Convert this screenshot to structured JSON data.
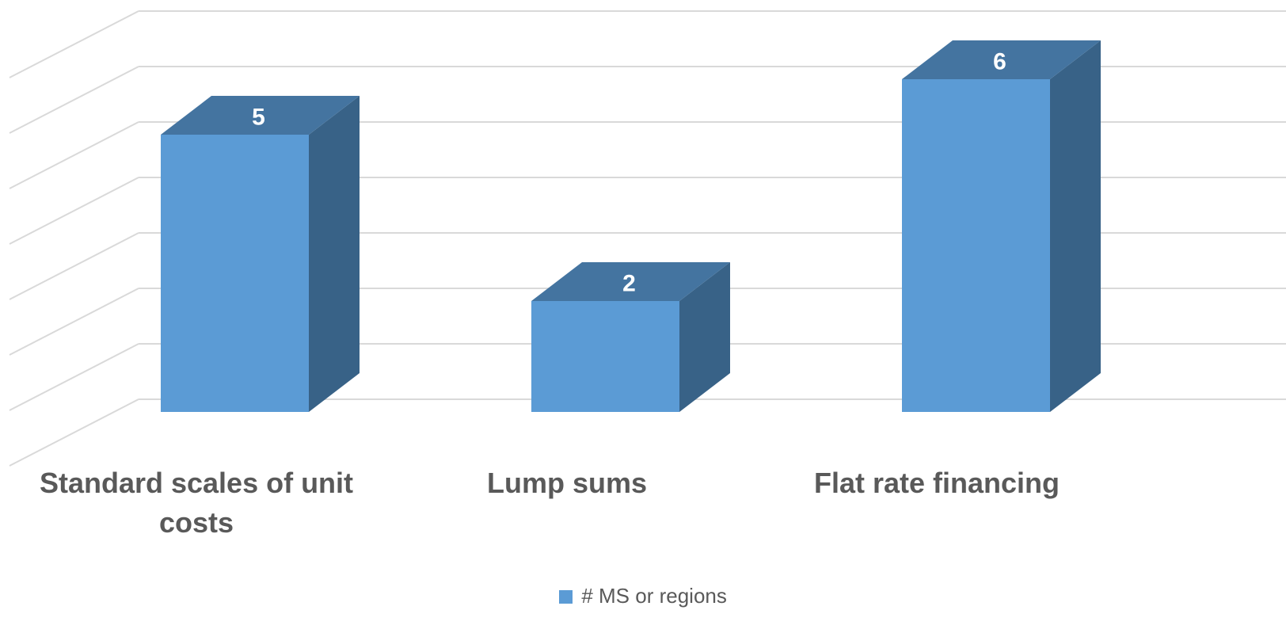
{
  "chart_data": {
    "type": "bar",
    "style": "3d-column",
    "categories": [
      "Standard scales of unit costs",
      "Lump sums",
      "Flat rate financing"
    ],
    "series": [
      {
        "name": "# MS or regions",
        "values": [
          5,
          2,
          6
        ]
      }
    ],
    "ylim": [
      0,
      7
    ],
    "grid": true,
    "data_labels": true,
    "legend": "bottom",
    "colors": {
      "front": "#5b9bd5",
      "top": "#4474a0",
      "side": "#386287",
      "grid": "#d9d9d9",
      "label": "#595959"
    }
  }
}
